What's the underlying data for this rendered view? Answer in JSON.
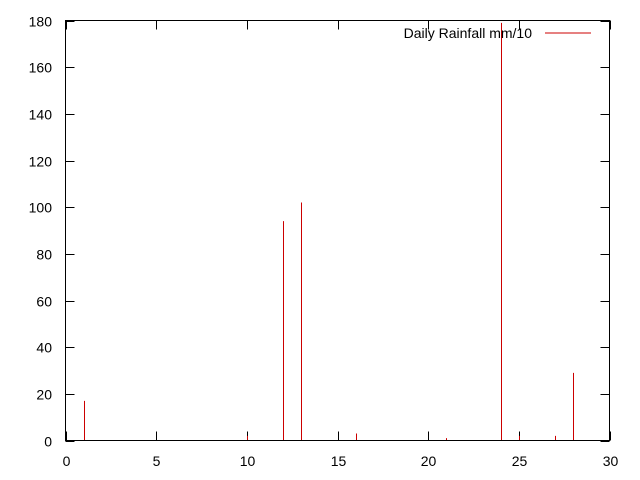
{
  "chart_data": {
    "type": "impulse",
    "title": "",
    "xlabel": "",
    "ylabel": "",
    "xlim": [
      0,
      30
    ],
    "ylim": [
      0,
      180
    ],
    "xticks": [
      0,
      5,
      10,
      15,
      20,
      25,
      30
    ],
    "yticks": [
      0,
      20,
      40,
      60,
      80,
      100,
      120,
      140,
      160,
      180
    ],
    "grid": false,
    "legend_position": "top-right",
    "series": [
      {
        "name": "Daily Rainfall mm/10",
        "color": "#cc0000",
        "x": [
          1,
          10,
          12,
          13,
          16,
          21,
          24,
          25,
          27,
          28
        ],
        "y": [
          17,
          2,
          94,
          102,
          3,
          1,
          179,
          2,
          2,
          29
        ]
      }
    ]
  }
}
